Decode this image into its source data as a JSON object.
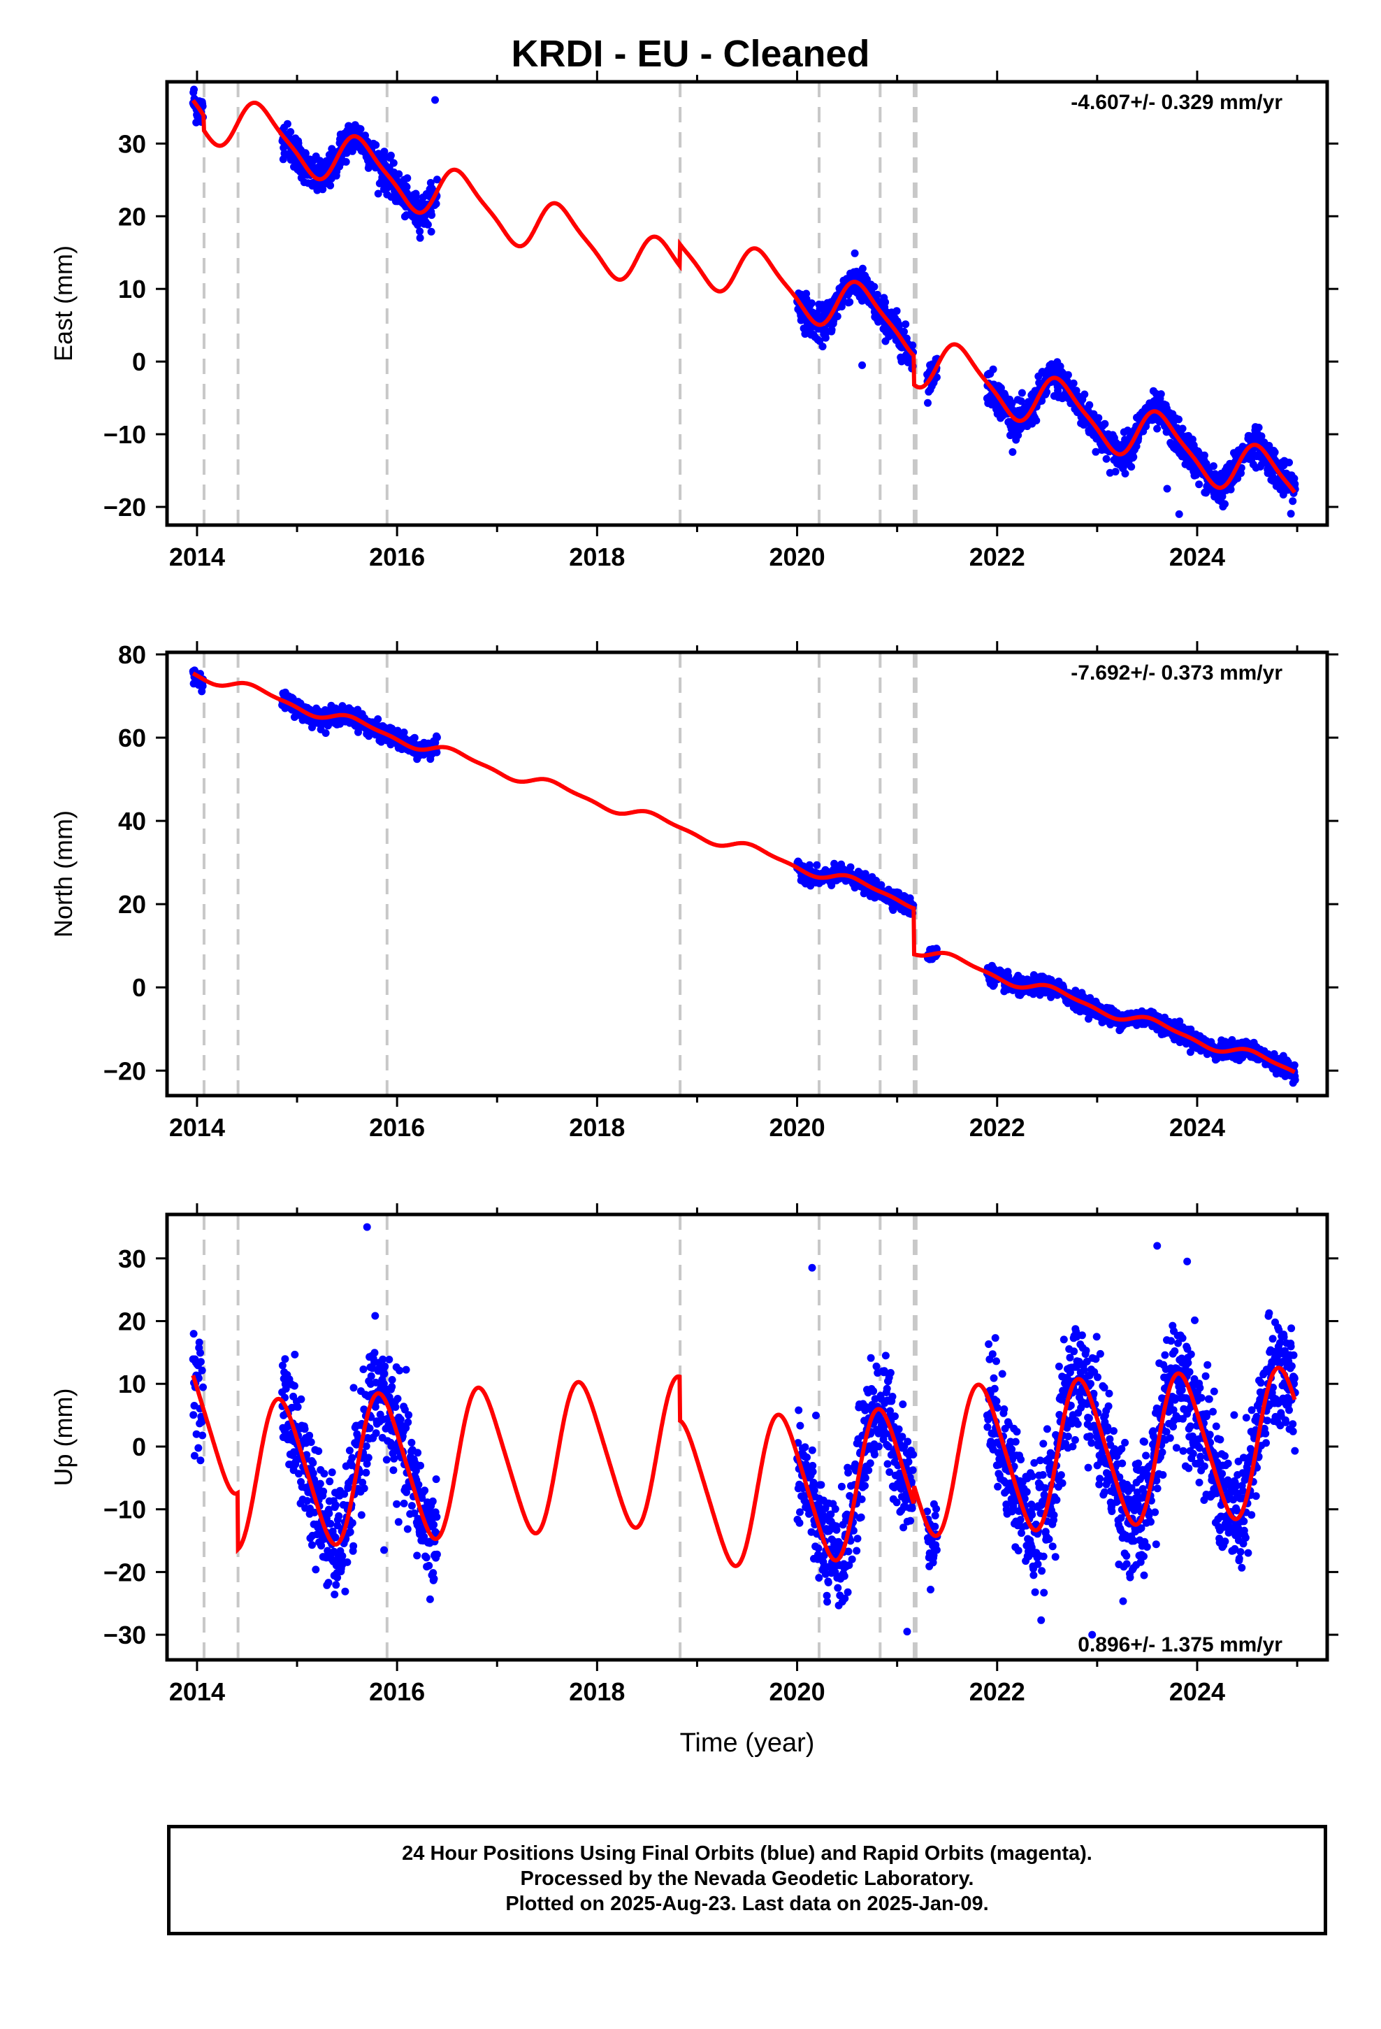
{
  "title": "KRDI  - EU - Cleaned",
  "colors": {
    "data": "#0000ff",
    "model": "#ff0000",
    "event_line": "#c8c8c8",
    "frame": "#000000"
  },
  "footer": {
    "line1": "24 Hour Positions Using Final Orbits (blue) and Rapid Orbits (magenta).",
    "line2": "Processed by the Nevada Geodetic Laboratory.",
    "line3": "Plotted on 2025-Aug-23. Last data on 2025-Jan-09."
  },
  "chart_data": [
    {
      "type": "scatter",
      "component": "east",
      "ylabel": "East (mm)",
      "rate_text": "-4.607+/- 0.329 mm/yr",
      "rate_position": "top-right",
      "xlim": [
        2013.7,
        2025.3
      ],
      "ylim": [
        -22.5,
        38.5
      ],
      "x_ticks": [
        2014,
        2016,
        2018,
        2020,
        2022,
        2024
      ],
      "y_ticks": [
        -20,
        -10,
        0,
        10,
        20,
        30
      ],
      "event_lines": [
        2014.07,
        2014.41,
        2015.9,
        2018.83,
        2020.22,
        2020.83,
        2021.17,
        2021.19
      ],
      "offsets": [
        {
          "year": 2014.07,
          "mm": -2
        },
        {
          "year": 2018.83,
          "mm": 3
        },
        {
          "year": 2021.17,
          "mm": -4
        }
      ],
      "trend": {
        "ref_year": 2014.0,
        "intercept_mm": 36.5,
        "rate_mm_per_yr": -4.607
      },
      "seasonal": {
        "annual_amp_mm": 3.5,
        "annual_phase_year": 0.4,
        "semiannual_amp_mm": 0.8
      },
      "data_segments": [
        {
          "start": 2013.96,
          "end": 2014.06,
          "scatter_mm": 1.2
        },
        {
          "start": 2014.85,
          "end": 2016.4,
          "scatter_mm": 1.2
        },
        {
          "start": 2020.0,
          "end": 2021.16,
          "scatter_mm": 1.2
        },
        {
          "start": 2021.3,
          "end": 2021.4,
          "scatter_mm": 1.0
        },
        {
          "start": 2021.9,
          "end": 2024.98,
          "scatter_mm": 1.2
        }
      ],
      "outliers": [
        [
          2016.38,
          36
        ],
        [
          2020.65,
          -0.5
        ],
        [
          2023.82,
          -21
        ],
        [
          2023.7,
          -17.5
        ]
      ]
    },
    {
      "type": "scatter",
      "component": "north",
      "ylabel": "North (mm)",
      "rate_text": "-7.692+/- 0.373 mm/yr",
      "rate_position": "top-right",
      "xlim": [
        2013.7,
        2025.3
      ],
      "ylim": [
        -26,
        80.5
      ],
      "x_ticks": [
        2014,
        2016,
        2018,
        2020,
        2022,
        2024
      ],
      "y_ticks": [
        -20,
        0,
        20,
        40,
        60,
        80
      ],
      "event_lines": [
        2014.07,
        2014.41,
        2015.9,
        2018.83,
        2020.22,
        2020.83,
        2021.17,
        2021.19
      ],
      "offsets": [
        {
          "year": 2021.17,
          "mm": -11
        },
        {
          "year": 2018.83,
          "mm": 0
        },
        {
          "year": 2014.07,
          "mm": 0
        }
      ],
      "trend": {
        "ref_year": 2014.0,
        "intercept_mm": 75.5,
        "rate_mm_per_yr": -7.692
      },
      "seasonal": {
        "annual_amp_mm": 1.2,
        "annual_phase_year": 0.35,
        "semiannual_amp_mm": 0.4
      },
      "data_segments": [
        {
          "start": 2013.96,
          "end": 2014.06,
          "scatter_mm": 1.0
        },
        {
          "start": 2014.85,
          "end": 2016.4,
          "scatter_mm": 1.0
        },
        {
          "start": 2020.0,
          "end": 2021.16,
          "scatter_mm": 1.0
        },
        {
          "start": 2021.3,
          "end": 2021.4,
          "scatter_mm": 0.8
        },
        {
          "start": 2021.9,
          "end": 2024.98,
          "scatter_mm": 1.0
        }
      ],
      "outliers": []
    },
    {
      "type": "scatter",
      "component": "up",
      "ylabel": "Up (mm)",
      "xlabel": "Time (year)",
      "rate_text": "0.896+/- 1.375 mm/yr",
      "rate_position": "bottom-right",
      "xlim": [
        2013.7,
        2025.3
      ],
      "ylim": [
        -34,
        37
      ],
      "x_ticks": [
        2014,
        2016,
        2018,
        2020,
        2022,
        2024
      ],
      "y_ticks": [
        -30,
        -20,
        -10,
        0,
        10,
        20,
        30
      ],
      "event_lines": [
        2014.07,
        2014.41,
        2015.9,
        2018.83,
        2020.22,
        2020.83,
        2021.17,
        2021.19
      ],
      "offsets": [
        {
          "year": 2014.41,
          "mm": -9
        },
        {
          "year": 2018.83,
          "mm": -7
        },
        {
          "year": 2021.17,
          "mm": 3
        }
      ],
      "trend": {
        "ref_year": 2014.0,
        "intercept_mm": 4.0,
        "rate_mm_per_yr": 0.896
      },
      "seasonal": {
        "annual_amp_mm": 11.5,
        "annual_phase_year": 0.6,
        "semiannual_amp_mm": 1.5
      },
      "data_segments": [
        {
          "start": 2013.96,
          "end": 2014.06,
          "scatter_mm": 4.0
        },
        {
          "start": 2014.85,
          "end": 2016.4,
          "scatter_mm": 4.5
        },
        {
          "start": 2020.0,
          "end": 2021.16,
          "scatter_mm": 4.5
        },
        {
          "start": 2021.3,
          "end": 2021.4,
          "scatter_mm": 3.0
        },
        {
          "start": 2021.9,
          "end": 2024.98,
          "scatter_mm": 5.0
        }
      ],
      "outliers": [
        [
          2015.7,
          35
        ],
        [
          2023.6,
          32
        ],
        [
          2023.9,
          29.5
        ],
        [
          2020.15,
          28.5
        ],
        [
          2021.1,
          -29.5
        ],
        [
          2022.95,
          -30
        ],
        [
          2015.87,
          -16.5
        ],
        [
          2015.2,
          -14
        ]
      ]
    }
  ]
}
